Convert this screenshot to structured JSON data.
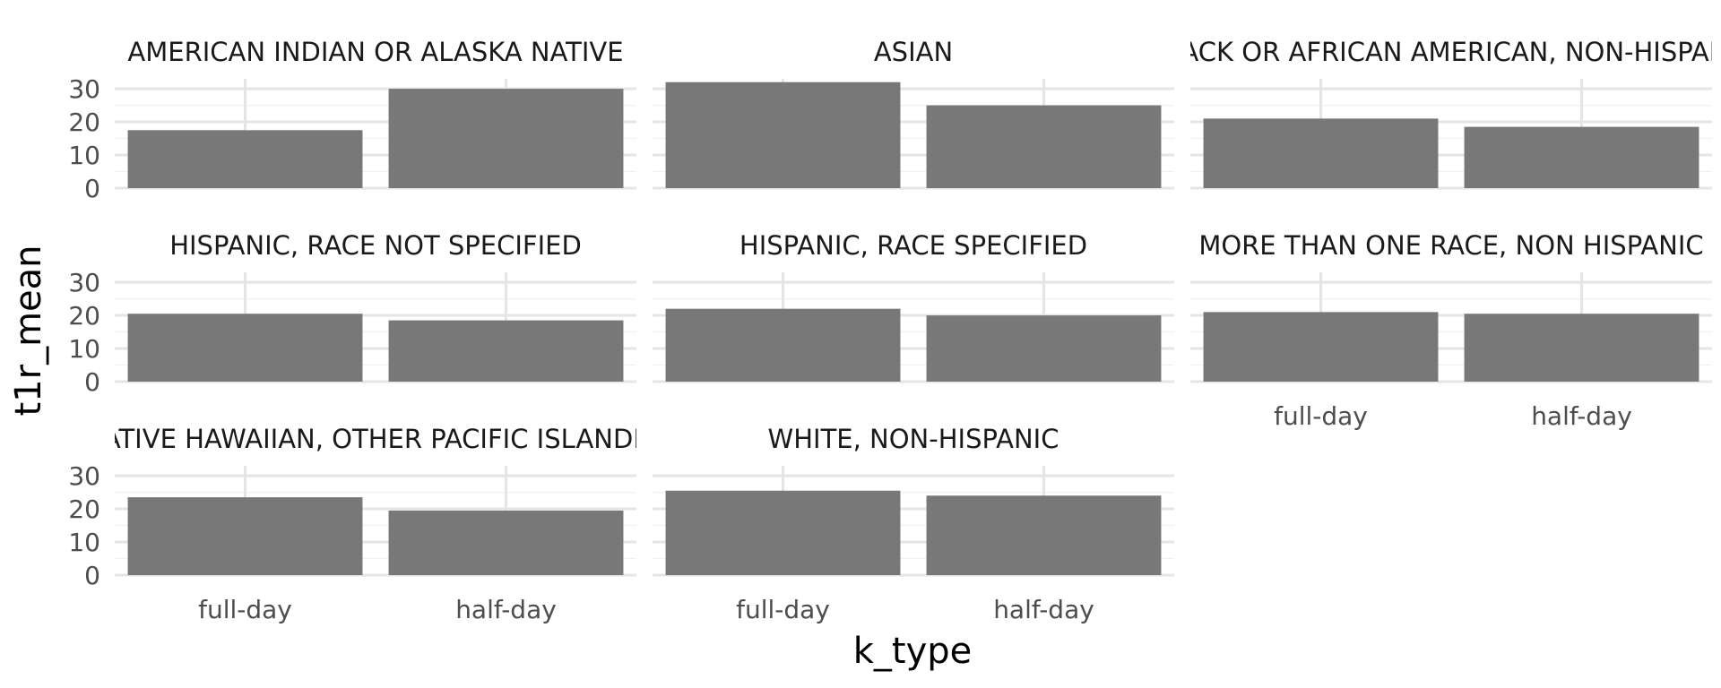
{
  "chart_data": {
    "type": "bar",
    "xlabel": "k_type",
    "ylabel": "t1r_mean",
    "categories": [
      "full-day",
      "half-day"
    ],
    "y_ticks": [
      0,
      10,
      20,
      30
    ],
    "ylim": [
      0,
      33
    ],
    "grid": true,
    "layout": "facet_wrap 3 columns",
    "bar_color": "#787878",
    "grid_major_color": "#e5e5e5",
    "grid_minor_color": "#f2f2f2",
    "panels": [
      {
        "title": "AMERICAN INDIAN OR ALASKA NATIVE",
        "values": [
          17.5,
          30
        ]
      },
      {
        "title": "ASIAN",
        "values": [
          32,
          25
        ]
      },
      {
        "title": "BLACK OR AFRICAN AMERICAN, NON-HISPANIC",
        "values": [
          21,
          18.5
        ]
      },
      {
        "title": "HISPANIC, RACE NOT SPECIFIED",
        "values": [
          20.5,
          18.5
        ]
      },
      {
        "title": "HISPANIC, RACE SPECIFIED",
        "values": [
          22,
          20
        ]
      },
      {
        "title": "MORE THAN ONE RACE, NON HISPANIC",
        "values": [
          21,
          20.5
        ]
      },
      {
        "title": "NATIVE HAWAIIAN, OTHER PACIFIC ISLANDER",
        "values": [
          23.5,
          19.5
        ]
      },
      {
        "title": "WHITE, NON-HISPANIC",
        "values": [
          25.5,
          24
        ]
      }
    ]
  }
}
